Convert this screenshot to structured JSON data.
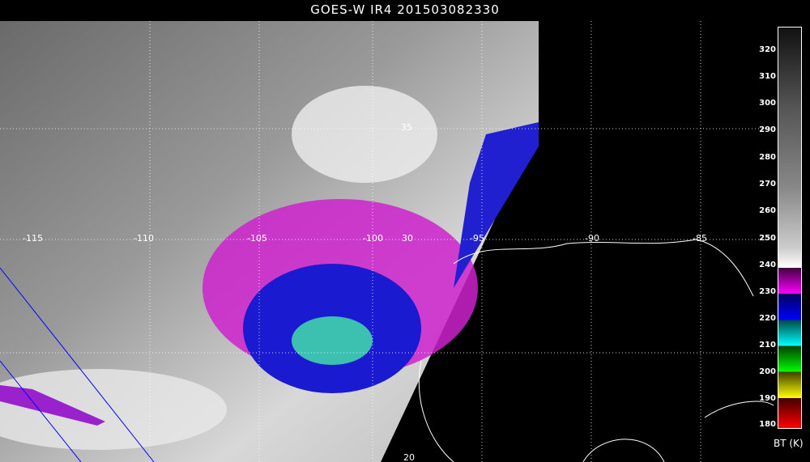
{
  "title": "GOES-W IR4 201503082330",
  "colorbar": {
    "label": "BT (K)",
    "ticks": [
      "320",
      "310",
      "300",
      "290",
      "280",
      "270",
      "260",
      "250",
      "240",
      "230",
      "220",
      "210",
      "200",
      "190",
      "180"
    ],
    "colors": {
      "gray_top": "#111111",
      "white": "#ffffff",
      "magenta": "#ff00ff",
      "blue": "#0000ff",
      "cyan": "#00ffff",
      "green": "#00ff00",
      "yellow": "#ffff00",
      "red": "#ff0000"
    }
  },
  "map": {
    "lon_labels": [
      "-115",
      "-110",
      "-105",
      "-100",
      "-95",
      "-90",
      "-85"
    ],
    "lat_labels": [
      "35",
      "30",
      "20"
    ]
  }
}
